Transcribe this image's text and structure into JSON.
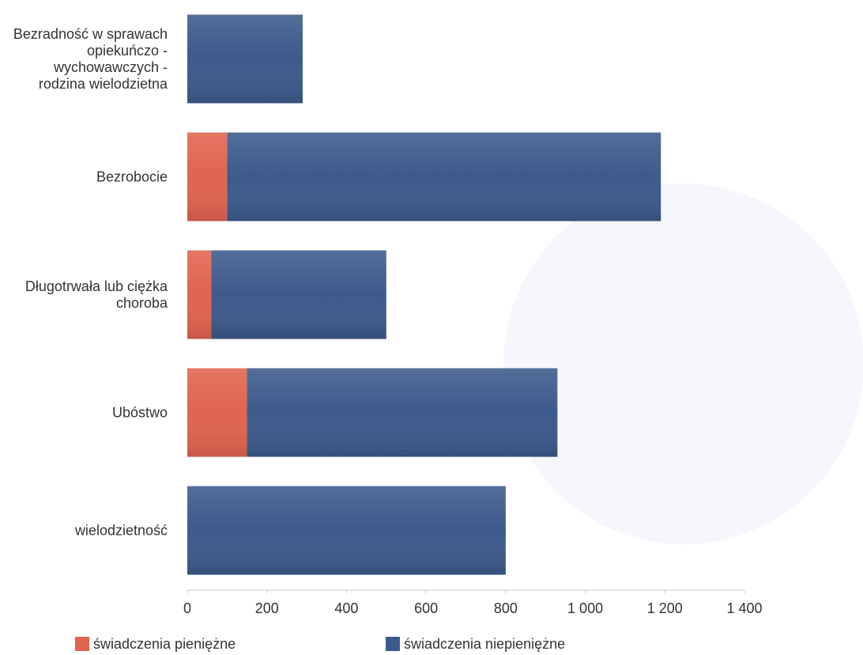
{
  "chart_data": {
    "type": "stacked-barh",
    "categories": [
      "Bezradność w sprawach opiekuńczo - wychowawczych - rodzina wielodzietna",
      "Bezrobocie",
      "Długotrwała lub ciężka choroba",
      "Ubóstwo",
      "wielodzietność"
    ],
    "series": [
      {
        "name": "świadczenia pieniężne",
        "color": "#e0644f",
        "values": [
          0,
          100,
          60,
          150,
          0
        ]
      },
      {
        "name": "świadczenia niepieniężne",
        "color": "#3d5a8c",
        "values": [
          290,
          1090,
          440,
          780,
          800
        ]
      }
    ],
    "xlim": [
      0,
      1400
    ],
    "xticks": [
      0,
      200,
      400,
      600,
      800,
      {
        "value": 1000,
        "label": "1 000"
      },
      {
        "value": 1200,
        "label": "1 200"
      },
      {
        "value": 1400,
        "label": "1 400"
      }
    ],
    "legend": "bottom-left"
  }
}
